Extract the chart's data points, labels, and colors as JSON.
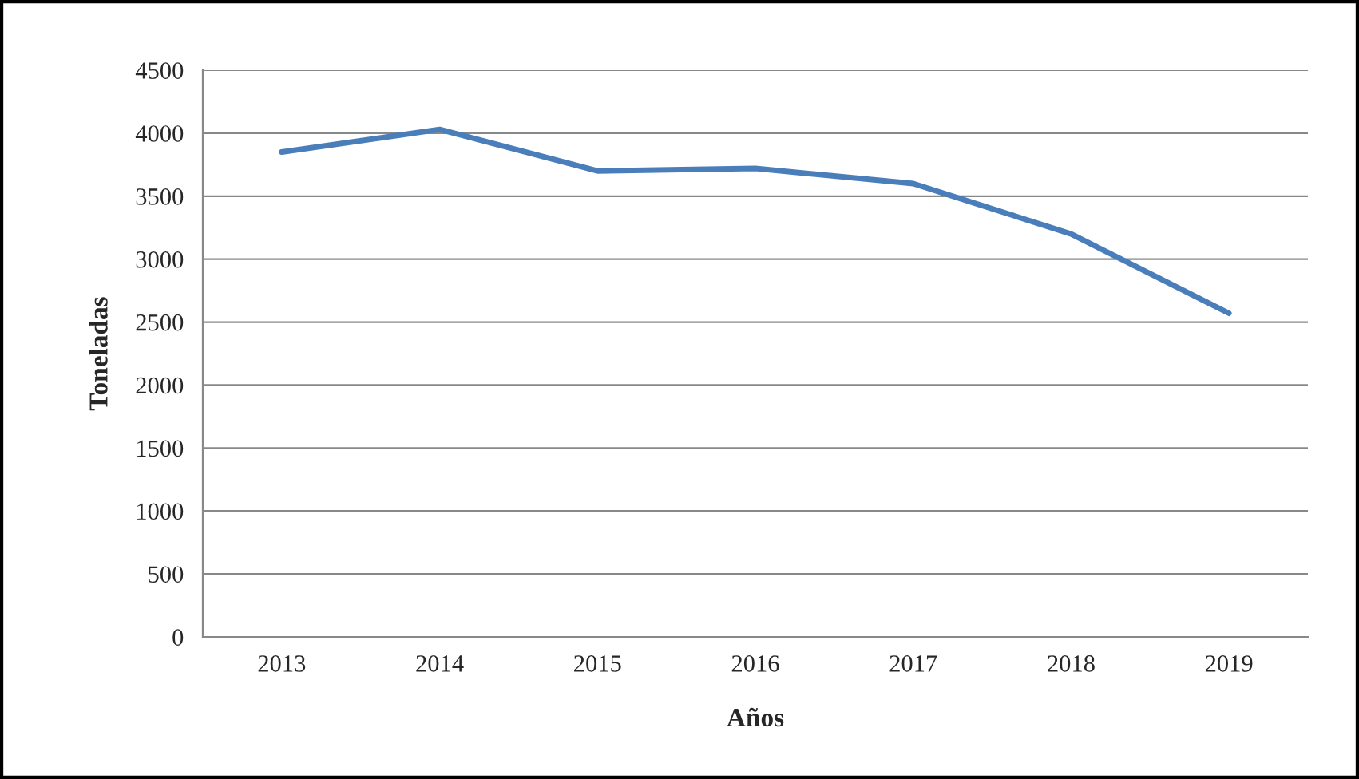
{
  "chart_data": {
    "type": "line",
    "xlabel": "Años",
    "ylabel": "Toneladas",
    "categories": [
      "2013",
      "2014",
      "2015",
      "2016",
      "2017",
      "2018",
      "2019"
    ],
    "series": [
      {
        "color": "#4a7ebb",
        "values": [
          3850,
          4030,
          3700,
          3720,
          3600,
          3200,
          2570
        ]
      }
    ],
    "ylim": [
      0,
      4500
    ],
    "yticks": [
      0,
      500,
      1000,
      1500,
      2000,
      2500,
      3000,
      3500,
      4000,
      4500
    ],
    "grid": "y",
    "legend": false,
    "marker": "none",
    "line_style": "solid"
  }
}
